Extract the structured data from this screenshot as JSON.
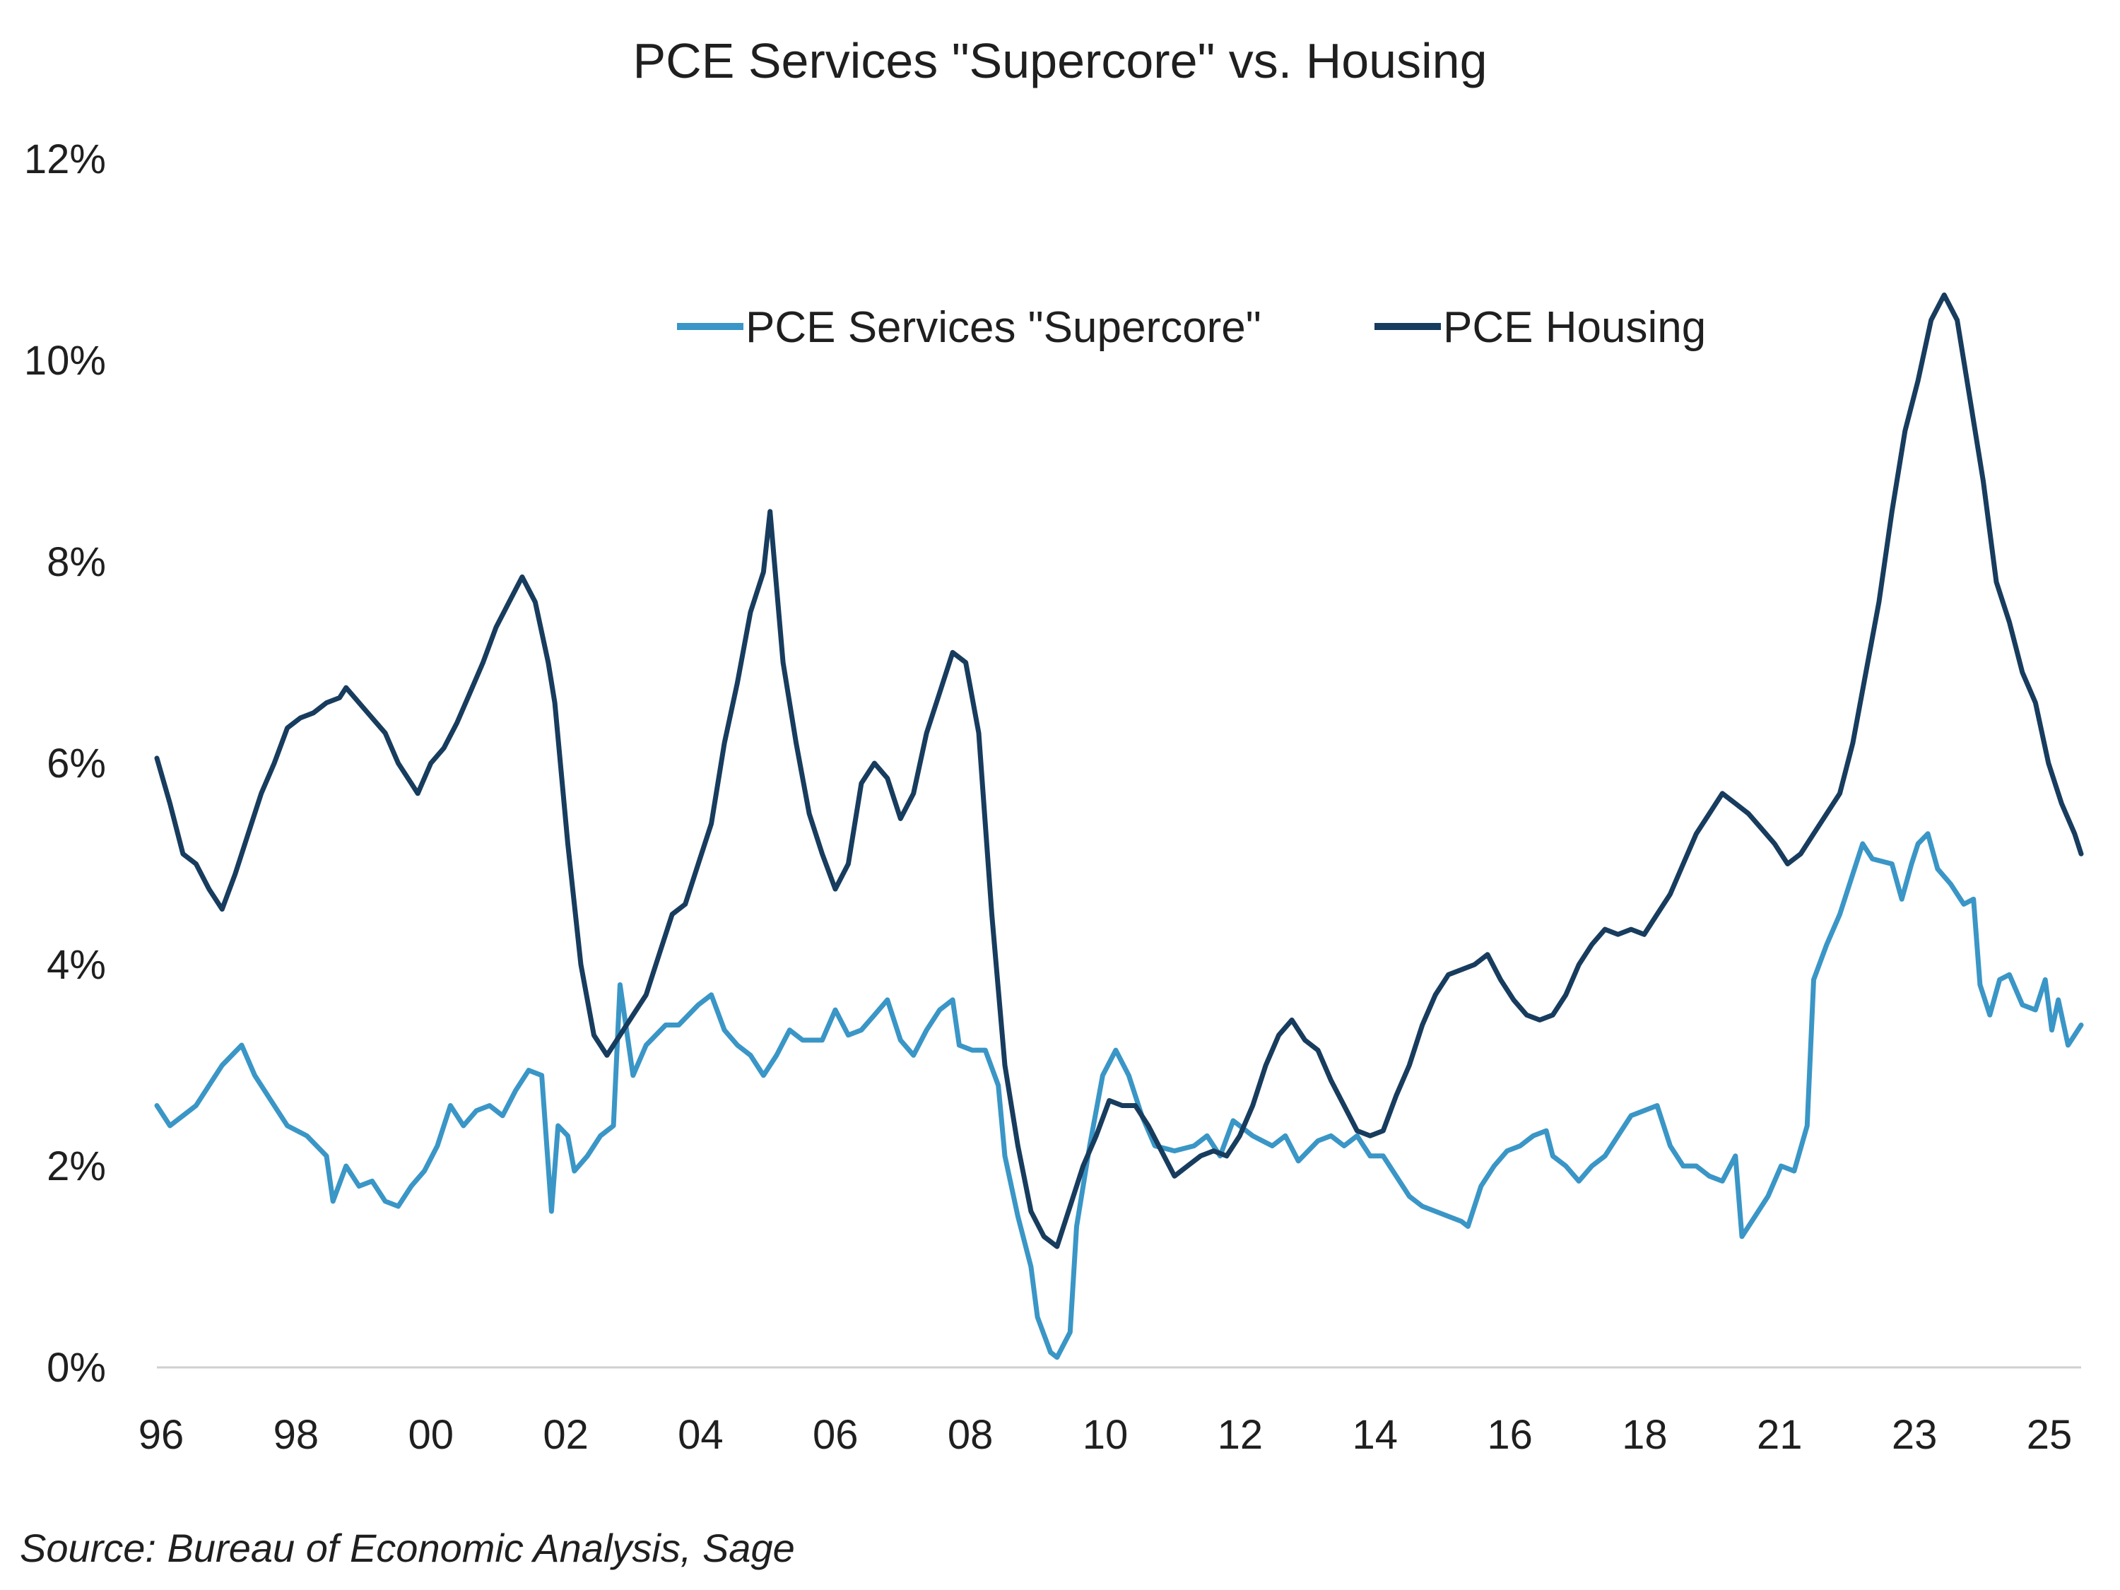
{
  "chart_data": {
    "type": "line",
    "title": "PCE Services \"Supercore\" vs. Housing",
    "xlabel": "",
    "ylabel": "",
    "x_range": [
      1996.0,
      2025.5
    ],
    "ylim": [
      0,
      12
    ],
    "y_ticks": [
      0,
      2,
      4,
      6,
      8,
      10,
      12
    ],
    "y_tick_labels": [
      "0%",
      "2%",
      "4%",
      "6%",
      "8%",
      "10%",
      "12%"
    ],
    "x_tick_labels": [
      "96",
      "98",
      "00",
      "02",
      "04",
      "06",
      "08",
      "10",
      "12",
      "14",
      "16",
      "18",
      "21",
      "23",
      "25"
    ],
    "grid": false,
    "legend_position": "top-center",
    "source": "Source: Bureau of Economic Analysis, Sage",
    "series": [
      {
        "name": "PCE Services \"Supercore\"",
        "color": "#3a96c6",
        "points": [
          [
            1996.0,
            2.6
          ],
          [
            1996.2,
            2.4
          ],
          [
            1996.4,
            2.5
          ],
          [
            1996.6,
            2.6
          ],
          [
            1996.8,
            2.8
          ],
          [
            1997.0,
            3.0
          ],
          [
            1997.3,
            3.2
          ],
          [
            1997.5,
            2.9
          ],
          [
            1997.8,
            2.6
          ],
          [
            1998.0,
            2.4
          ],
          [
            1998.3,
            2.3
          ],
          [
            1998.6,
            2.1
          ],
          [
            1998.7,
            1.65
          ],
          [
            1998.9,
            2.0
          ],
          [
            1999.1,
            1.8
          ],
          [
            1999.3,
            1.85
          ],
          [
            1999.5,
            1.65
          ],
          [
            1999.7,
            1.6
          ],
          [
            1999.9,
            1.8
          ],
          [
            2000.1,
            1.95
          ],
          [
            2000.3,
            2.2
          ],
          [
            2000.5,
            2.6
          ],
          [
            2000.7,
            2.4
          ],
          [
            2000.9,
            2.55
          ],
          [
            2001.1,
            2.6
          ],
          [
            2001.3,
            2.5
          ],
          [
            2001.5,
            2.75
          ],
          [
            2001.7,
            2.95
          ],
          [
            2001.9,
            2.9
          ],
          [
            2002.05,
            1.55
          ],
          [
            2002.15,
            2.4
          ],
          [
            2002.3,
            2.3
          ],
          [
            2002.4,
            1.95
          ],
          [
            2002.6,
            2.1
          ],
          [
            2002.8,
            2.3
          ],
          [
            2003.0,
            2.4
          ],
          [
            2003.1,
            3.8
          ],
          [
            2003.3,
            2.9
          ],
          [
            2003.5,
            3.2
          ],
          [
            2003.8,
            3.4
          ],
          [
            2004.0,
            3.4
          ],
          [
            2004.3,
            3.6
          ],
          [
            2004.5,
            3.7
          ],
          [
            2004.7,
            3.35
          ],
          [
            2004.9,
            3.2
          ],
          [
            2005.1,
            3.1
          ],
          [
            2005.3,
            2.9
          ],
          [
            2005.5,
            3.1
          ],
          [
            2005.7,
            3.35
          ],
          [
            2005.9,
            3.25
          ],
          [
            2006.2,
            3.25
          ],
          [
            2006.4,
            3.55
          ],
          [
            2006.6,
            3.3
          ],
          [
            2006.8,
            3.35
          ],
          [
            2007.0,
            3.5
          ],
          [
            2007.2,
            3.65
          ],
          [
            2007.4,
            3.25
          ],
          [
            2007.6,
            3.1
          ],
          [
            2007.8,
            3.35
          ],
          [
            2008.0,
            3.55
          ],
          [
            2008.2,
            3.65
          ],
          [
            2008.3,
            3.2
          ],
          [
            2008.5,
            3.15
          ],
          [
            2008.7,
            3.15
          ],
          [
            2008.9,
            2.8
          ],
          [
            2009.0,
            2.1
          ],
          [
            2009.2,
            1.5
          ],
          [
            2009.4,
            1.0
          ],
          [
            2009.5,
            0.5
          ],
          [
            2009.7,
            0.15
          ],
          [
            2009.8,
            0.1
          ],
          [
            2010.0,
            0.35
          ],
          [
            2010.1,
            1.4
          ],
          [
            2010.3,
            2.2
          ],
          [
            2010.5,
            2.9
          ],
          [
            2010.7,
            3.15
          ],
          [
            2010.9,
            2.9
          ],
          [
            2011.1,
            2.5
          ],
          [
            2011.3,
            2.2
          ],
          [
            2011.6,
            2.15
          ],
          [
            2011.9,
            2.2
          ],
          [
            2012.1,
            2.3
          ],
          [
            2012.3,
            2.1
          ],
          [
            2012.5,
            2.45
          ],
          [
            2012.8,
            2.3
          ],
          [
            2013.1,
            2.2
          ],
          [
            2013.3,
            2.3
          ],
          [
            2013.5,
            2.05
          ],
          [
            2013.8,
            2.25
          ],
          [
            2014.0,
            2.3
          ],
          [
            2014.2,
            2.2
          ],
          [
            2014.4,
            2.3
          ],
          [
            2014.6,
            2.1
          ],
          [
            2014.8,
            2.1
          ],
          [
            2015.0,
            1.9
          ],
          [
            2015.2,
            1.7
          ],
          [
            2015.4,
            1.6
          ],
          [
            2015.6,
            1.55
          ],
          [
            2015.8,
            1.5
          ],
          [
            2016.0,
            1.45
          ],
          [
            2016.1,
            1.4
          ],
          [
            2016.3,
            1.8
          ],
          [
            2016.5,
            2.0
          ],
          [
            2016.7,
            2.15
          ],
          [
            2016.9,
            2.2
          ],
          [
            2017.1,
            2.3
          ],
          [
            2017.3,
            2.35
          ],
          [
            2017.4,
            2.1
          ],
          [
            2017.6,
            2.0
          ],
          [
            2017.8,
            1.85
          ],
          [
            2018.0,
            2.0
          ],
          [
            2018.2,
            2.1
          ],
          [
            2018.4,
            2.3
          ],
          [
            2018.6,
            2.5
          ],
          [
            2018.8,
            2.55
          ],
          [
            2019.0,
            2.6
          ],
          [
            2019.2,
            2.2
          ],
          [
            2019.4,
            2.0
          ],
          [
            2019.6,
            2.0
          ],
          [
            2019.8,
            1.9
          ],
          [
            2020.0,
            1.85
          ],
          [
            2020.2,
            2.1
          ],
          [
            2020.3,
            1.3
          ],
          [
            2020.5,
            1.5
          ],
          [
            2020.7,
            1.7
          ],
          [
            2020.9,
            2.0
          ],
          [
            2021.1,
            1.95
          ],
          [
            2021.3,
            2.4
          ],
          [
            2021.4,
            3.85
          ],
          [
            2021.6,
            4.2
          ],
          [
            2021.8,
            4.5
          ],
          [
            2022.0,
            4.9
          ],
          [
            2022.15,
            5.2
          ],
          [
            2022.3,
            5.05
          ],
          [
            2022.6,
            5.0
          ],
          [
            2022.75,
            4.65
          ],
          [
            2022.9,
            5.0
          ],
          [
            2023.0,
            5.2
          ],
          [
            2023.15,
            5.3
          ],
          [
            2023.3,
            4.95
          ],
          [
            2023.5,
            4.8
          ],
          [
            2023.7,
            4.6
          ],
          [
            2023.85,
            4.65
          ],
          [
            2023.95,
            3.8
          ],
          [
            2024.1,
            3.5
          ],
          [
            2024.25,
            3.85
          ],
          [
            2024.4,
            3.9
          ],
          [
            2024.6,
            3.6
          ],
          [
            2024.8,
            3.55
          ],
          [
            2024.95,
            3.85
          ],
          [
            2025.05,
            3.35
          ],
          [
            2025.15,
            3.65
          ],
          [
            2025.3,
            3.2
          ],
          [
            2025.4,
            3.3
          ],
          [
            2025.5,
            3.4
          ]
        ]
      },
      {
        "name": "PCE Housing",
        "color": "#173c5e",
        "points": [
          [
            1996.0,
            6.05
          ],
          [
            1996.2,
            5.6
          ],
          [
            1996.4,
            5.1
          ],
          [
            1996.6,
            5.0
          ],
          [
            1996.8,
            4.75
          ],
          [
            1997.0,
            4.55
          ],
          [
            1997.2,
            4.9
          ],
          [
            1997.4,
            5.3
          ],
          [
            1997.6,
            5.7
          ],
          [
            1997.8,
            6.0
          ],
          [
            1998.0,
            6.35
          ],
          [
            1998.2,
            6.45
          ],
          [
            1998.4,
            6.5
          ],
          [
            1998.6,
            6.6
          ],
          [
            1998.8,
            6.65
          ],
          [
            1998.9,
            6.75
          ],
          [
            1999.1,
            6.6
          ],
          [
            1999.3,
            6.45
          ],
          [
            1999.5,
            6.3
          ],
          [
            1999.7,
            6.0
          ],
          [
            1999.9,
            5.8
          ],
          [
            2000.0,
            5.7
          ],
          [
            2000.2,
            6.0
          ],
          [
            2000.4,
            6.15
          ],
          [
            2000.6,
            6.4
          ],
          [
            2000.8,
            6.7
          ],
          [
            2001.0,
            7.0
          ],
          [
            2001.2,
            7.35
          ],
          [
            2001.4,
            7.6
          ],
          [
            2001.6,
            7.85
          ],
          [
            2001.8,
            7.6
          ],
          [
            2002.0,
            7.0
          ],
          [
            2002.1,
            6.6
          ],
          [
            2002.3,
            5.2
          ],
          [
            2002.5,
            4.0
          ],
          [
            2002.7,
            3.3
          ],
          [
            2002.9,
            3.1
          ],
          [
            2003.1,
            3.3
          ],
          [
            2003.3,
            3.5
          ],
          [
            2003.5,
            3.7
          ],
          [
            2003.7,
            4.1
          ],
          [
            2003.9,
            4.5
          ],
          [
            2004.1,
            4.6
          ],
          [
            2004.3,
            5.0
          ],
          [
            2004.5,
            5.4
          ],
          [
            2004.7,
            6.2
          ],
          [
            2004.9,
            6.8
          ],
          [
            2005.1,
            7.5
          ],
          [
            2005.3,
            7.9
          ],
          [
            2005.4,
            8.5
          ],
          [
            2005.6,
            7.0
          ],
          [
            2005.8,
            6.2
          ],
          [
            2006.0,
            5.5
          ],
          [
            2006.2,
            5.1
          ],
          [
            2006.4,
            4.75
          ],
          [
            2006.6,
            5.0
          ],
          [
            2006.8,
            5.8
          ],
          [
            2007.0,
            6.0
          ],
          [
            2007.2,
            5.85
          ],
          [
            2007.4,
            5.45
          ],
          [
            2007.6,
            5.7
          ],
          [
            2007.8,
            6.3
          ],
          [
            2008.0,
            6.7
          ],
          [
            2008.2,
            7.1
          ],
          [
            2008.4,
            7.0
          ],
          [
            2008.6,
            6.3
          ],
          [
            2008.8,
            4.5
          ],
          [
            2009.0,
            3.0
          ],
          [
            2009.2,
            2.2
          ],
          [
            2009.4,
            1.55
          ],
          [
            2009.6,
            1.3
          ],
          [
            2009.8,
            1.2
          ],
          [
            2010.0,
            1.6
          ],
          [
            2010.2,
            2.0
          ],
          [
            2010.4,
            2.3
          ],
          [
            2010.6,
            2.65
          ],
          [
            2010.8,
            2.6
          ],
          [
            2011.0,
            2.6
          ],
          [
            2011.2,
            2.4
          ],
          [
            2011.4,
            2.15
          ],
          [
            2011.6,
            1.9
          ],
          [
            2011.8,
            2.0
          ],
          [
            2012.0,
            2.1
          ],
          [
            2012.2,
            2.15
          ],
          [
            2012.4,
            2.1
          ],
          [
            2012.6,
            2.3
          ],
          [
            2012.8,
            2.6
          ],
          [
            2013.0,
            3.0
          ],
          [
            2013.2,
            3.3
          ],
          [
            2013.4,
            3.45
          ],
          [
            2013.6,
            3.25
          ],
          [
            2013.8,
            3.15
          ],
          [
            2014.0,
            2.85
          ],
          [
            2014.2,
            2.6
          ],
          [
            2014.4,
            2.35
          ],
          [
            2014.6,
            2.3
          ],
          [
            2014.8,
            2.35
          ],
          [
            2015.0,
            2.7
          ],
          [
            2015.2,
            3.0
          ],
          [
            2015.4,
            3.4
          ],
          [
            2015.6,
            3.7
          ],
          [
            2015.8,
            3.9
          ],
          [
            2016.0,
            3.95
          ],
          [
            2016.2,
            4.0
          ],
          [
            2016.4,
            4.1
          ],
          [
            2016.6,
            3.85
          ],
          [
            2016.8,
            3.65
          ],
          [
            2017.0,
            3.5
          ],
          [
            2017.2,
            3.45
          ],
          [
            2017.4,
            3.5
          ],
          [
            2017.6,
            3.7
          ],
          [
            2017.8,
            4.0
          ],
          [
            2018.0,
            4.2
          ],
          [
            2018.2,
            4.35
          ],
          [
            2018.4,
            4.3
          ],
          [
            2018.6,
            4.35
          ],
          [
            2018.8,
            4.3
          ],
          [
            2019.0,
            4.5
          ],
          [
            2019.2,
            4.7
          ],
          [
            2019.4,
            5.0
          ],
          [
            2019.6,
            5.3
          ],
          [
            2019.8,
            5.5
          ],
          [
            2020.0,
            5.7
          ],
          [
            2020.2,
            5.6
          ],
          [
            2020.4,
            5.5
          ],
          [
            2020.6,
            5.35
          ],
          [
            2020.8,
            5.2
          ],
          [
            2021.0,
            5.0
          ],
          [
            2021.2,
            5.1
          ],
          [
            2021.4,
            5.3
          ],
          [
            2021.6,
            5.5
          ],
          [
            2021.8,
            5.7
          ],
          [
            2022.0,
            6.2
          ],
          [
            2022.2,
            6.9
          ],
          [
            2022.4,
            7.6
          ],
          [
            2022.6,
            8.5
          ],
          [
            2022.8,
            9.3
          ],
          [
            2023.0,
            9.8
          ],
          [
            2023.2,
            10.4
          ],
          [
            2023.4,
            10.65
          ],
          [
            2023.6,
            10.4
          ],
          [
            2023.8,
            9.6
          ],
          [
            2024.0,
            8.8
          ],
          [
            2024.2,
            7.8
          ],
          [
            2024.4,
            7.4
          ],
          [
            2024.6,
            6.9
          ],
          [
            2024.8,
            6.6
          ],
          [
            2025.0,
            6.0
          ],
          [
            2025.2,
            5.6
          ],
          [
            2025.4,
            5.3
          ],
          [
            2025.5,
            5.1
          ]
        ]
      }
    ]
  }
}
